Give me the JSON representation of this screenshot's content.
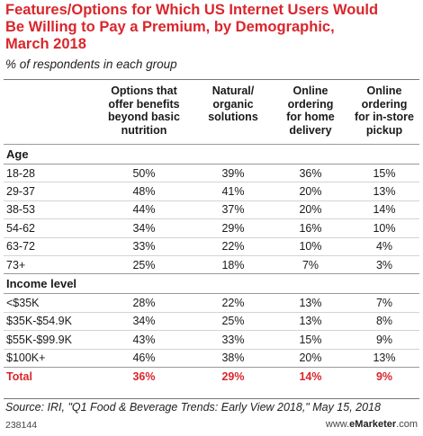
{
  "chart_data": {
    "type": "table",
    "title_lines": [
      "Features/Options for Which US Internet Users Would",
      "Be Willing to Pay a Premium, by Demographic,",
      "March 2018"
    ],
    "subtitle": "% of respondents in each group",
    "columns": [
      {
        "name": "Options that offer benefits beyond basic nutrition",
        "lines": [
          "Options that",
          "offer benefits",
          "beyond basic",
          "nutrition"
        ]
      },
      {
        "name": "Natural/ organic solutions",
        "lines": [
          "Natural/",
          "organic",
          "solutions"
        ]
      },
      {
        "name": "Online ordering for home delivery",
        "lines": [
          "Online",
          "ordering",
          "for home",
          "delivery"
        ]
      },
      {
        "name": "Online ordering for in-store pickup",
        "lines": [
          "Online",
          "ordering",
          "for in-store",
          "pickup"
        ]
      }
    ],
    "sections": [
      {
        "label": "Age",
        "rows": [
          {
            "label": "18-28",
            "values": [
              "50%",
              "39%",
              "36%",
              "15%"
            ]
          },
          {
            "label": "29-37",
            "values": [
              "48%",
              "41%",
              "20%",
              "13%"
            ]
          },
          {
            "label": "38-53",
            "values": [
              "44%",
              "37%",
              "20%",
              "14%"
            ]
          },
          {
            "label": "54-62",
            "values": [
              "34%",
              "29%",
              "16%",
              "10%"
            ]
          },
          {
            "label": "63-72",
            "values": [
              "33%",
              "22%",
              "10%",
              "4%"
            ]
          },
          {
            "label": "73+",
            "values": [
              "25%",
              "18%",
              "7%",
              "3%"
            ]
          }
        ]
      },
      {
        "label": "Income level",
        "rows": [
          {
            "label": "<$35K",
            "values": [
              "28%",
              "22%",
              "13%",
              "7%"
            ]
          },
          {
            "label": "$35K-$54.9K",
            "values": [
              "34%",
              "25%",
              "13%",
              "8%"
            ]
          },
          {
            "label": "$55K-$99.9K",
            "values": [
              "43%",
              "33%",
              "15%",
              "9%"
            ]
          },
          {
            "label": "$100K+",
            "values": [
              "46%",
              "38%",
              "20%",
              "13%"
            ]
          }
        ]
      }
    ],
    "total": {
      "label": "Total",
      "values": [
        "36%",
        "29%",
        "14%",
        "9%"
      ]
    },
    "source": "Source: IRI, \"Q1 Food & Beverage Trends: Early View 2018,\" May 15, 2018",
    "footer_id": "238144",
    "brand_prefix": "www.",
    "brand_name": "eMarketer",
    "brand_suffix": ".com",
    "colors": {
      "title": "#d9262c",
      "total": "#d9262c",
      "rule": "#999999",
      "row_rule": "#d3d3d3"
    }
  }
}
